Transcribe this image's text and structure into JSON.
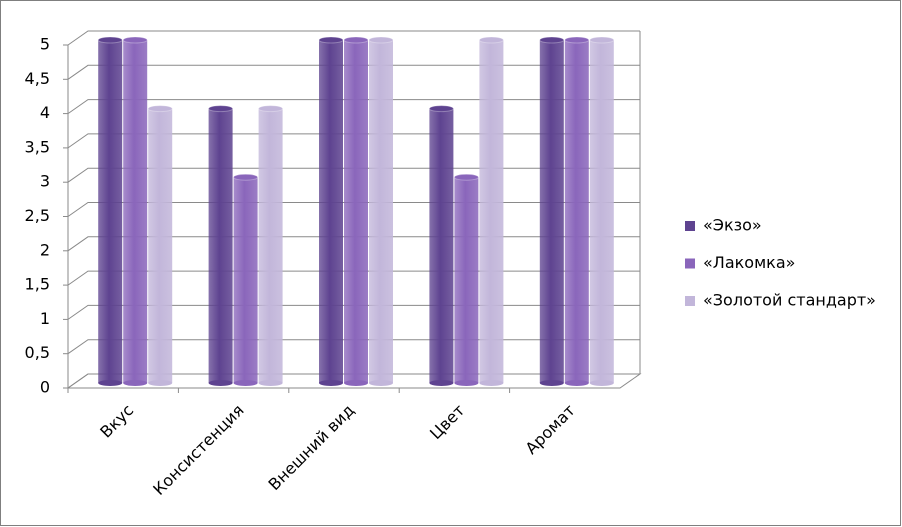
{
  "chart_data": {
    "type": "bar",
    "categories": [
      "Вкус",
      "Консистенция",
      "Внешний вид",
      "Цвет",
      "Аромат"
    ],
    "series": [
      {
        "name": "«Экзо»",
        "color": "#5e4390",
        "values": [
          5,
          4,
          5,
          4,
          5
        ]
      },
      {
        "name": "«Лакомка»",
        "color": "#8a66bb",
        "values": [
          5,
          3,
          5,
          3,
          5
        ]
      },
      {
        "name": "«Золотой стандарт»",
        "color": "#c2b6da",
        "values": [
          4,
          4,
          5,
          5,
          5
        ]
      }
    ],
    "ylim": [
      0,
      5
    ],
    "yticks": [
      0,
      {
        "value": 0.5,
        "label": "0,5"
      },
      1,
      {
        "value": 1.5,
        "label": "1,5"
      },
      2,
      {
        "value": 2.5,
        "label": "2,5"
      },
      3,
      {
        "value": 3.5,
        "label": "3,5"
      },
      4,
      {
        "value": 4.5,
        "label": "4,5"
      },
      5
    ],
    "grid": true,
    "legend": "right"
  }
}
